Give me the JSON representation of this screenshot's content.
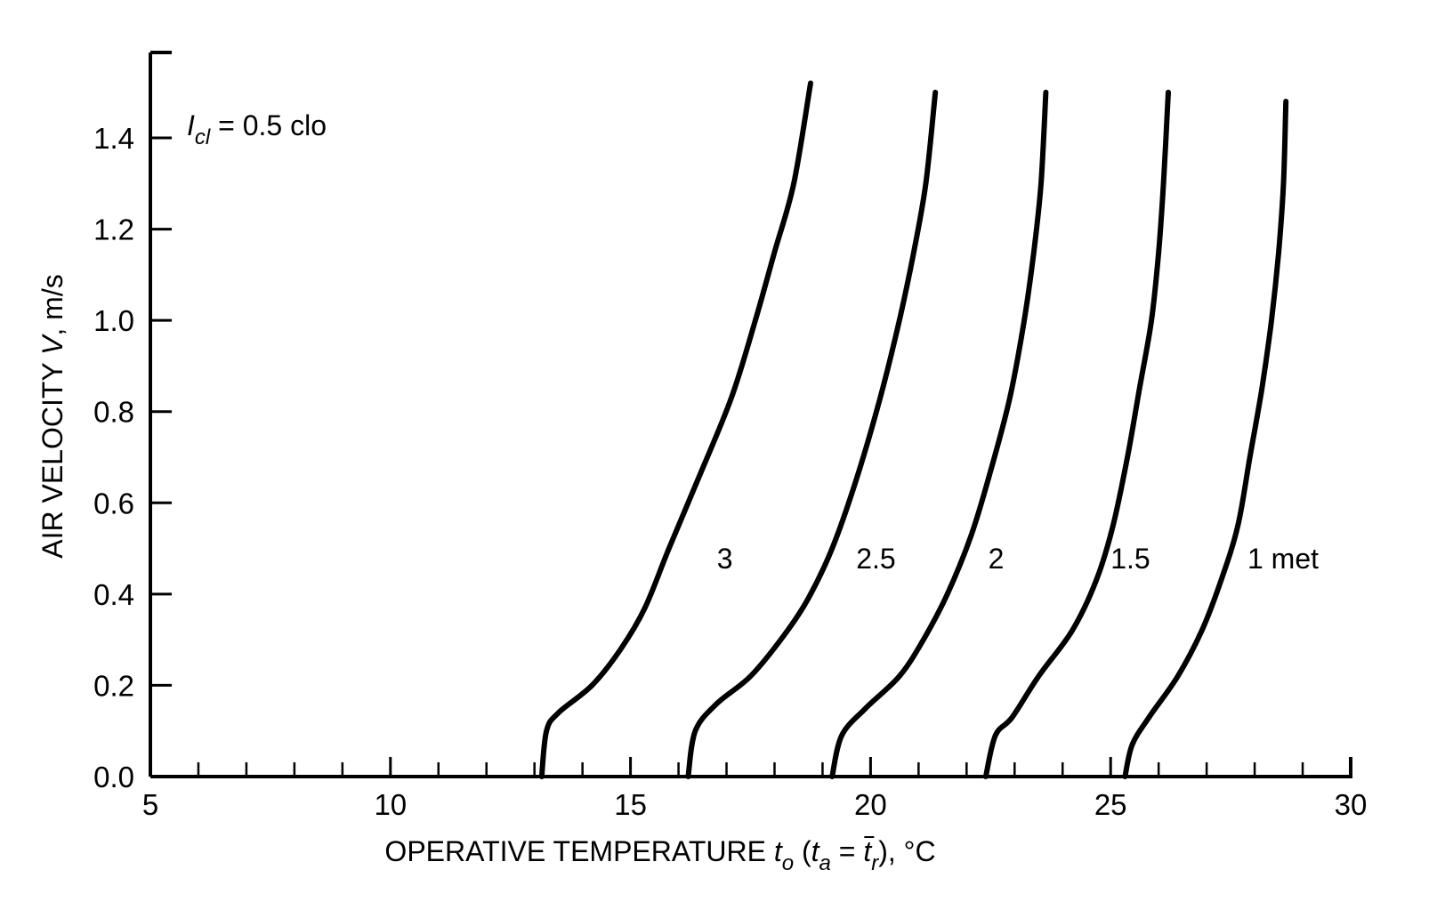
{
  "chart_data": {
    "type": "line",
    "title": "",
    "annotation": {
      "symbol": "I",
      "subscript": "cl",
      "text": " = 0.5 clo"
    },
    "xlabel": {
      "main": "OPERATIVE TEMPERATURE ",
      "symbol": "t",
      "symbol_sub": "o",
      "paren_open": " (",
      "ta": "t",
      "ta_sub": "a",
      "equals": " = ",
      "tr": "t",
      "tr_sub": "r",
      "suffix": "), °C"
    },
    "ylabel": {
      "main": "AIR VELOCITY ",
      "symbol": "V",
      "suffix": ", m/s"
    },
    "xlim": [
      5,
      30
    ],
    "ylim": [
      0,
      1.5
    ],
    "xticks": [
      5,
      10,
      15,
      20,
      25,
      30
    ],
    "xtick_labels": [
      "5",
      "10",
      "15",
      "20",
      "25",
      "30"
    ],
    "x_minor_step": 1,
    "yticks": [
      0.0,
      0.2,
      0.4,
      0.6,
      0.8,
      1.0,
      1.2,
      1.4
    ],
    "ytick_labels": [
      "0.0",
      "0.2",
      "0.4",
      "0.6",
      "0.8",
      "1.0",
      "1.2",
      "1.4"
    ],
    "grid": false,
    "series": [
      {
        "name": "3",
        "label_at": [
          16.8,
          0.48
        ],
        "points": [
          [
            13.15,
            0.0
          ],
          [
            13.25,
            0.1
          ],
          [
            13.5,
            0.14
          ],
          [
            14.2,
            0.2
          ],
          [
            14.8,
            0.28
          ],
          [
            15.3,
            0.37
          ],
          [
            15.8,
            0.5
          ],
          [
            16.4,
            0.65
          ],
          [
            17.1,
            0.83
          ],
          [
            17.6,
            1.0
          ],
          [
            18.0,
            1.15
          ],
          [
            18.4,
            1.3
          ],
          [
            18.75,
            1.52
          ]
        ]
      },
      {
        "name": "2.5",
        "label_at": [
          19.7,
          0.48
        ],
        "points": [
          [
            16.2,
            0.0
          ],
          [
            16.35,
            0.1
          ],
          [
            16.8,
            0.16
          ],
          [
            17.5,
            0.22
          ],
          [
            18.2,
            0.31
          ],
          [
            18.7,
            0.39
          ],
          [
            19.2,
            0.5
          ],
          [
            19.7,
            0.65
          ],
          [
            20.2,
            0.83
          ],
          [
            20.6,
            1.0
          ],
          [
            20.9,
            1.15
          ],
          [
            21.15,
            1.3
          ],
          [
            21.35,
            1.5
          ]
        ]
      },
      {
        "name": "2",
        "label_at": [
          22.45,
          0.48
        ],
        "points": [
          [
            19.2,
            0.0
          ],
          [
            19.4,
            0.09
          ],
          [
            19.9,
            0.15
          ],
          [
            20.6,
            0.22
          ],
          [
            21.1,
            0.3
          ],
          [
            21.6,
            0.4
          ],
          [
            22.1,
            0.53
          ],
          [
            22.5,
            0.67
          ],
          [
            22.9,
            0.83
          ],
          [
            23.2,
            1.0
          ],
          [
            23.4,
            1.15
          ],
          [
            23.55,
            1.3
          ],
          [
            23.65,
            1.5
          ]
        ]
      },
      {
        "name": "1.5",
        "label_at": [
          25.0,
          0.48
        ],
        "points": [
          [
            22.4,
            0.0
          ],
          [
            22.6,
            0.09
          ],
          [
            22.95,
            0.13
          ],
          [
            23.5,
            0.22
          ],
          [
            24.2,
            0.32
          ],
          [
            24.7,
            0.43
          ],
          [
            25.05,
            0.55
          ],
          [
            25.35,
            0.7
          ],
          [
            25.6,
            0.85
          ],
          [
            25.85,
            1.0
          ],
          [
            26.0,
            1.15
          ],
          [
            26.1,
            1.3
          ],
          [
            26.2,
            1.5
          ]
        ]
      },
      {
        "name": "1 met",
        "label_at": [
          27.85,
          0.48
        ],
        "points": [
          [
            25.3,
            0.0
          ],
          [
            25.45,
            0.07
          ],
          [
            25.8,
            0.13
          ],
          [
            26.4,
            0.22
          ],
          [
            26.9,
            0.32
          ],
          [
            27.3,
            0.43
          ],
          [
            27.65,
            0.55
          ],
          [
            27.9,
            0.7
          ],
          [
            28.15,
            0.85
          ],
          [
            28.35,
            1.0
          ],
          [
            28.5,
            1.15
          ],
          [
            28.6,
            1.3
          ],
          [
            28.65,
            1.48
          ]
        ]
      }
    ]
  }
}
